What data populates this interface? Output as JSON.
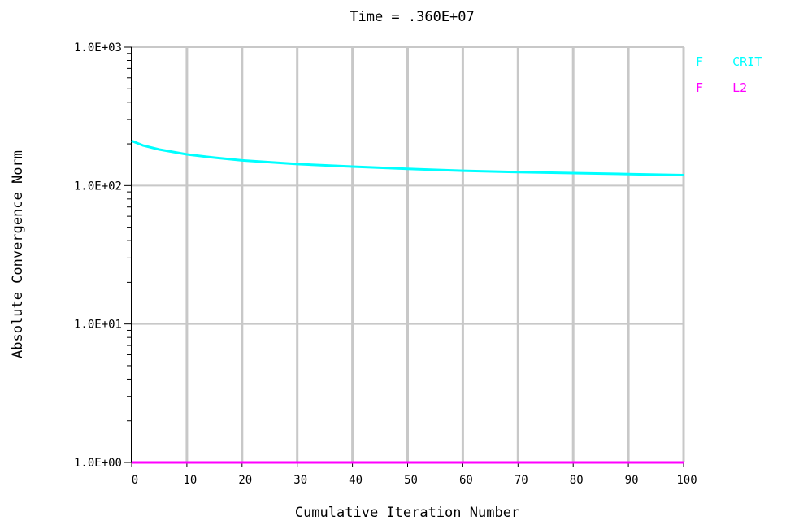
{
  "chart_data": {
    "type": "line",
    "title": "Time = .360E+07",
    "xlabel": "Cumulative Iteration Number",
    "ylabel": "Absolute Convergence Norm",
    "xlim": [
      0,
      100
    ],
    "ylim": [
      1,
      1000
    ],
    "yscale": "log",
    "grid": true,
    "legend_position": "top-right",
    "x_ticks": [
      "0",
      "10",
      "20",
      "30",
      "40",
      "50",
      "60",
      "70",
      "80",
      "90",
      "100"
    ],
    "y_ticks": [
      "1.0E+00",
      "1.0E+01",
      "1.0E+02",
      "1.0E+03"
    ],
    "series": [
      {
        "name": "F    CRIT",
        "color": "#00ffff",
        "x": [
          0,
          2,
          5,
          10,
          15,
          20,
          30,
          40,
          50,
          60,
          70,
          80,
          90,
          100
        ],
        "values": [
          210,
          195,
          182,
          168,
          159,
          152,
          143,
          137,
          132,
          128,
          125,
          123,
          121,
          119
        ]
      },
      {
        "name": "F    L2",
        "color": "#ff00ff",
        "x": [
          0,
          100
        ],
        "values": [
          1,
          1
        ]
      }
    ]
  }
}
